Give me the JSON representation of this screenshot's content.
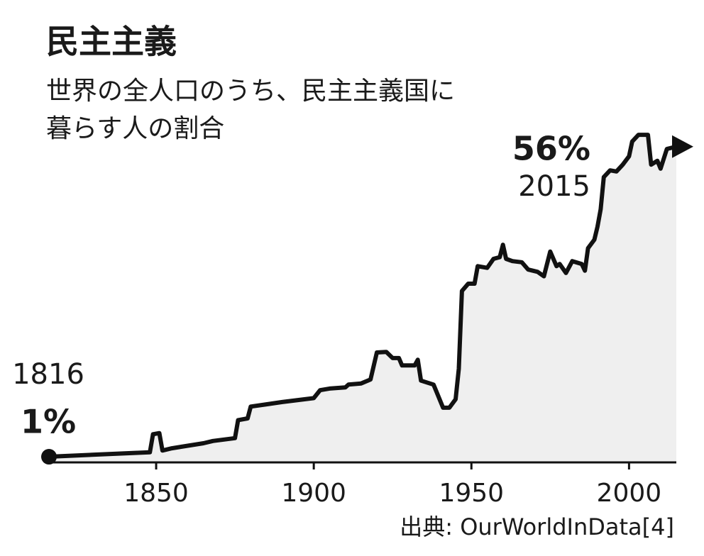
{
  "chart_data": {
    "type": "area",
    "title": "民主主義",
    "subtitle": [
      "世界の全人口のうち、民主主義国に",
      "暮らす人の割合"
    ],
    "source": "出典: OurWorldInData[4]",
    "annotations": [
      {
        "text": "1816",
        "emphasis": "1%"
      },
      {
        "text": "2015",
        "emphasis": "56%"
      }
    ],
    "x": [
      1816,
      1848,
      1849,
      1851,
      1852,
      1855,
      1865,
      1868,
      1875,
      1876,
      1879,
      1880,
      1885,
      1890,
      1900,
      1902,
      1905,
      1910,
      1911,
      1915,
      1918,
      1920,
      1923,
      1925,
      1927,
      1928,
      1932,
      1933,
      1934,
      1938,
      1941,
      1943,
      1945,
      1946,
      1947,
      1949,
      1951,
      1952,
      1955,
      1957,
      1959,
      1960,
      1961,
      1963,
      1966,
      1968,
      1971,
      1973,
      1975,
      1977,
      1978,
      1980,
      1982,
      1985,
      1986,
      1987,
      1989,
      1990,
      1991,
      1992,
      1994,
      1996,
      1998,
      2000,
      2001,
      2003,
      2006,
      2007,
      2009,
      2010,
      2012,
      2015
    ],
    "values": [
      1,
      1.8,
      5,
      5.2,
      2.1,
      2.5,
      3.4,
      3.8,
      4.3,
      7.5,
      7.8,
      9.9,
      10.3,
      10.7,
      11.4,
      12.8,
      13.1,
      13.3,
      13.8,
      14,
      14.7,
      19.5,
      19.6,
      18.5,
      18.5,
      17.2,
      17.2,
      18.2,
      14.5,
      13.8,
      9.7,
      9.7,
      11.2,
      16.6,
      30.4,
      31.7,
      31.7,
      34.8,
      34.5,
      36.1,
      36.4,
      38.6,
      36.1,
      35.7,
      35.5,
      34.2,
      33.8,
      33,
      37.4,
      34.8,
      35.2,
      33.6,
      35.7,
      35.2,
      34,
      38,
      39.5,
      41.8,
      44.9,
      50.6,
      51.8,
      51.6,
      52.8,
      54.3,
      56.9,
      58.1,
      58.1,
      52.8,
      53.5,
      52.1,
      55.6,
      56
    ],
    "color": "#111111",
    "fill": "#efefef",
    "xlim": [
      1816,
      2015
    ],
    "xticks": [
      1850,
      1900,
      1950,
      2000
    ],
    "ylim": [
      0,
      60
    ]
  }
}
